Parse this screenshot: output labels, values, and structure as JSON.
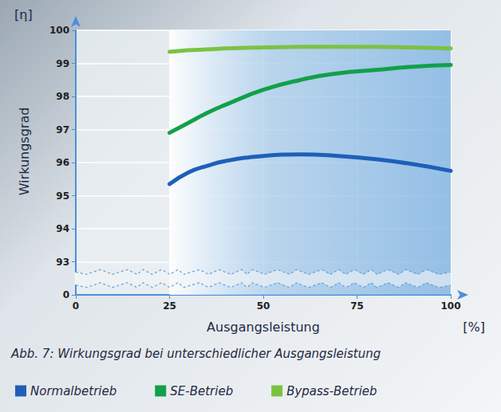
{
  "chart_data": {
    "type": "line",
    "title": "Abb. 7: Wirkungsgrad bei unterschiedlicher Ausgangsleistung",
    "xlabel": "Ausgangsleistung",
    "xunit": "[%]",
    "ylabel": "Wirkungsgrad",
    "yunit": "[η]",
    "x": [
      25,
      30,
      35,
      40,
      50,
      60,
      70,
      80,
      90,
      100
    ],
    "series": [
      {
        "name": "Normalbetrieb",
        "color": "#1f5fb8",
        "values": [
          95.35,
          95.7,
          95.9,
          96.05,
          96.2,
          96.25,
          96.2,
          96.1,
          95.95,
          95.75
        ]
      },
      {
        "name": "SE-Betrieb",
        "color": "#12a04a",
        "values": [
          96.9,
          97.2,
          97.5,
          97.75,
          98.2,
          98.5,
          98.7,
          98.8,
          98.9,
          98.95
        ]
      },
      {
        "name": "Bypass-Betrieb",
        "color": "#7cc242",
        "values": [
          99.35,
          99.4,
          99.42,
          99.45,
          99.48,
          99.5,
          99.5,
          99.5,
          99.48,
          99.45
        ]
      }
    ],
    "xlim": [
      0,
      100
    ],
    "xticks": [
      0,
      25,
      50,
      75,
      100
    ],
    "ylim": [
      0,
      100
    ],
    "yticks": [
      0,
      93,
      94,
      95,
      96,
      97,
      98,
      99,
      100
    ],
    "grid": true,
    "legend": "bottom"
  }
}
